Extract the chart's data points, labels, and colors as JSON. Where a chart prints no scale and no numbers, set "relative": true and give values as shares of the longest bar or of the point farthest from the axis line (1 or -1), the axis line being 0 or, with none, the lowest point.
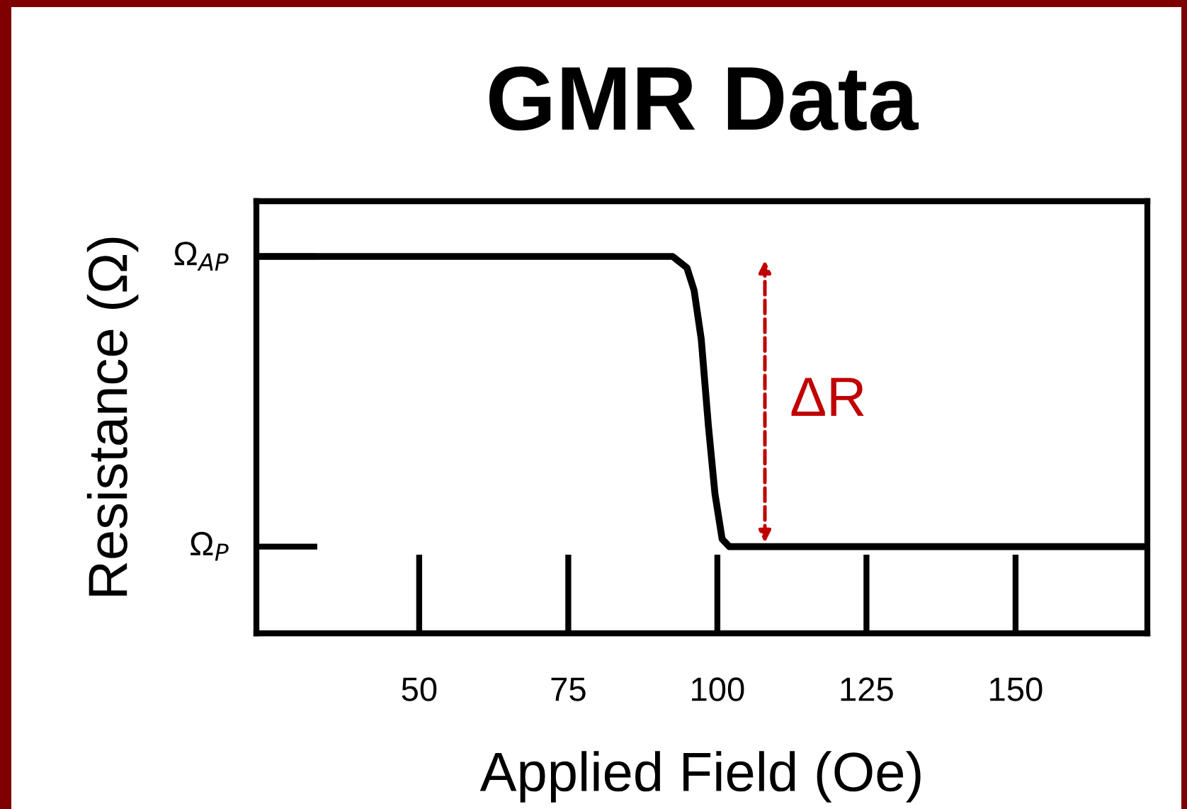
{
  "chart_data": {
    "type": "line",
    "title": "GMR Data",
    "xlabel": "Applied Field (Oe)",
    "ylabel": "Resistance (Ω)",
    "relative": true,
    "x": [
      22.7,
      92.5,
      94.9,
      96.1,
      97.3,
      98.5,
      99.6,
      100.8,
      102.0,
      172.1
    ],
    "series": [
      {
        "color": "#000000",
        "values": [
          1,
          1,
          0.97,
          0.91,
          0.78,
          0.55,
          0.37,
          0.25,
          0.23,
          0.23
        ]
      }
    ],
    "xlim": [
      22.7,
      172.1
    ],
    "xticks": [
      50,
      75,
      100,
      125,
      150
    ],
    "annotations": [
      "Ω$_{AP}$",
      "Ω$_{P}$",
      "ΔR"
    ],
    "grid": false,
    "legend": false,
    "marker": "none",
    "line_style": "solid"
  }
}
